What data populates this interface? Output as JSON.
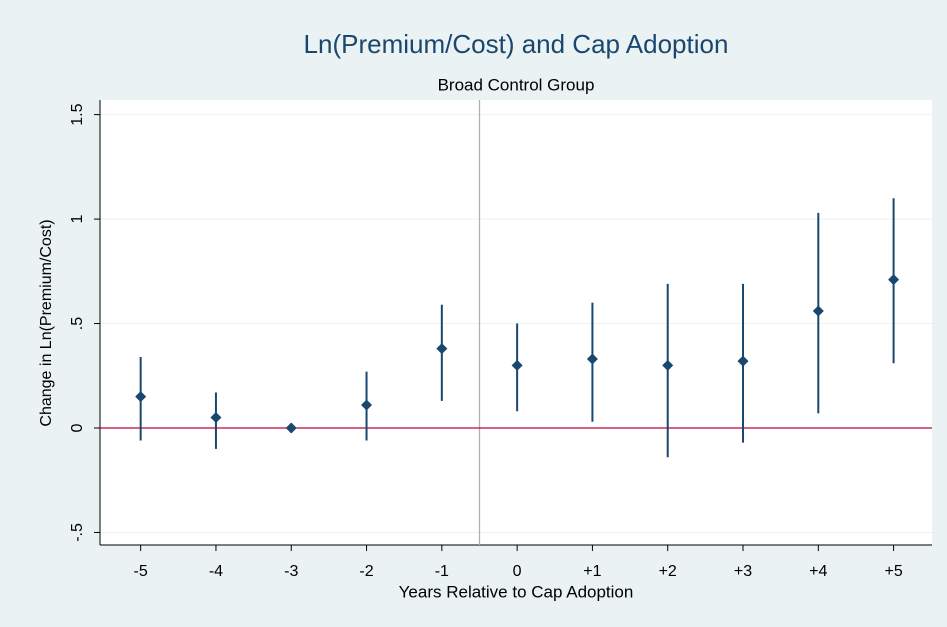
{
  "chart_data": {
    "type": "errorbar",
    "title": "Ln(Premium/Cost) and Cap Adoption",
    "subtitle": "Broad Control Group",
    "x_label": "Years Relative to Cap Adoption",
    "y_label": "Change in Ln(Premium/Cost)",
    "x": [
      -5,
      -4,
      -3,
      -2,
      -1,
      0,
      1,
      2,
      3,
      4,
      5
    ],
    "values": [
      0.15,
      0.05,
      0,
      0.11,
      0.38,
      0.3,
      0.33,
      0.3,
      0.32,
      0.56,
      0.71
    ],
    "lower": [
      -0.06,
      -0.1,
      0,
      -0.06,
      0.13,
      0.08,
      0.03,
      -0.14,
      -0.07,
      0.07,
      0.31
    ],
    "upper": [
      0.34,
      0.17,
      0,
      0.27,
      0.59,
      0.5,
      0.6,
      0.69,
      0.69,
      1.03,
      1.1
    ],
    "color": "#1a476f",
    "xlim": [
      -5.54,
      5.51
    ],
    "ylim": [
      -0.56,
      1.57
    ],
    "xticks": [
      -5,
      -4,
      -3,
      -2,
      -1,
      0,
      {
        "value": 1,
        "label": "+1"
      },
      {
        "value": 2,
        "label": "+2"
      },
      {
        "value": 3,
        "label": "+3"
      },
      {
        "value": 4,
        "label": "+4"
      },
      {
        "value": 5,
        "label": "+5"
      }
    ],
    "yticks": [
      {
        "value": -0.5,
        "label": "-.5"
      },
      0,
      {
        "value": 0.5,
        "label": ".5"
      },
      1,
      1.5
    ],
    "grid": true,
    "xline": -0.5,
    "xline_color": "#b0b0b0",
    "yline": 0,
    "yline_color": "#c10534"
  }
}
